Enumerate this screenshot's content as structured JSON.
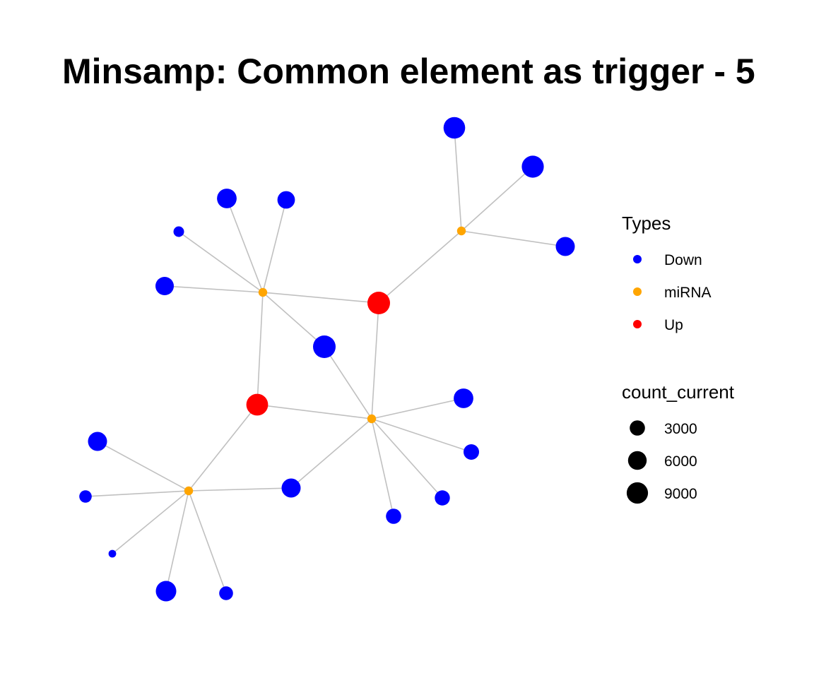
{
  "title": "Minsamp: Common element as trigger - 5",
  "legend": {
    "types_title": "Types",
    "types": [
      {
        "label": "Down",
        "color": "#0000ff"
      },
      {
        "label": "miRNA",
        "color": "#ffa500"
      },
      {
        "label": "Up",
        "color": "#ff0000"
      }
    ],
    "size_title": "count_current",
    "sizes": [
      {
        "label": "3000",
        "value": 3000
      },
      {
        "label": "6000",
        "value": 6000
      },
      {
        "label": "9000",
        "value": 9000
      }
    ]
  },
  "colors": {
    "Down": "#0000ff",
    "miRNA": "#ffa500",
    "Up": "#ff0000",
    "edge": "#c0c0c0"
  },
  "graph": {
    "nodes": [
      {
        "id": "m1",
        "type": "miRNA",
        "count": 0
      },
      {
        "id": "m2",
        "type": "miRNA",
        "count": 0
      },
      {
        "id": "m3",
        "type": "miRNA",
        "count": 0
      },
      {
        "id": "m4",
        "type": "miRNA",
        "count": 0
      },
      {
        "id": "u1",
        "type": "Up",
        "count": 9000
      },
      {
        "id": "u2",
        "type": "Up",
        "count": 8200
      },
      {
        "id": "d1",
        "type": "Down",
        "count": 8000
      },
      {
        "id": "d2",
        "type": "Down",
        "count": 8500
      },
      {
        "id": "d3",
        "type": "Down",
        "count": 5800
      },
      {
        "id": "d4",
        "type": "Down",
        "count": 6200
      },
      {
        "id": "d5",
        "type": "Down",
        "count": 4600
      },
      {
        "id": "d6",
        "type": "Down",
        "count": 900
      },
      {
        "id": "d7",
        "type": "Down",
        "count": 5200
      },
      {
        "id": "d8",
        "type": "Down",
        "count": 9000
      },
      {
        "id": "d9",
        "type": "Down",
        "count": 6200
      },
      {
        "id": "d10",
        "type": "Down",
        "count": 3200
      },
      {
        "id": "d11",
        "type": "Down",
        "count": 3000
      },
      {
        "id": "d12",
        "type": "Down",
        "count": 3100
      },
      {
        "id": "d13",
        "type": "Down",
        "count": 5800
      },
      {
        "id": "d14",
        "type": "Down",
        "count": 5800
      },
      {
        "id": "d15",
        "type": "Down",
        "count": 1600
      },
      {
        "id": "d16",
        "type": "Down",
        "count": 200
      },
      {
        "id": "d17",
        "type": "Down",
        "count": 7000
      },
      {
        "id": "d18",
        "type": "Down",
        "count": 2300
      }
    ],
    "edges": [
      [
        "m1",
        "d1"
      ],
      [
        "m1",
        "d2"
      ],
      [
        "m1",
        "d3"
      ],
      [
        "m1",
        "u1"
      ],
      [
        "m2",
        "d4"
      ],
      [
        "m2",
        "d5"
      ],
      [
        "m2",
        "d6"
      ],
      [
        "m2",
        "d7"
      ],
      [
        "m2",
        "u1"
      ],
      [
        "m2",
        "d8"
      ],
      [
        "m2",
        "u2"
      ],
      [
        "m3",
        "u1"
      ],
      [
        "m3",
        "d8"
      ],
      [
        "m3",
        "u2"
      ],
      [
        "m3",
        "d9"
      ],
      [
        "m3",
        "d10"
      ],
      [
        "m3",
        "d11"
      ],
      [
        "m3",
        "d12"
      ],
      [
        "m3",
        "d14"
      ],
      [
        "m4",
        "u2"
      ],
      [
        "m4",
        "d13"
      ],
      [
        "m4",
        "d14"
      ],
      [
        "m4",
        "d15"
      ],
      [
        "m4",
        "d16"
      ],
      [
        "m4",
        "d17"
      ],
      [
        "m4",
        "d18"
      ]
    ]
  }
}
